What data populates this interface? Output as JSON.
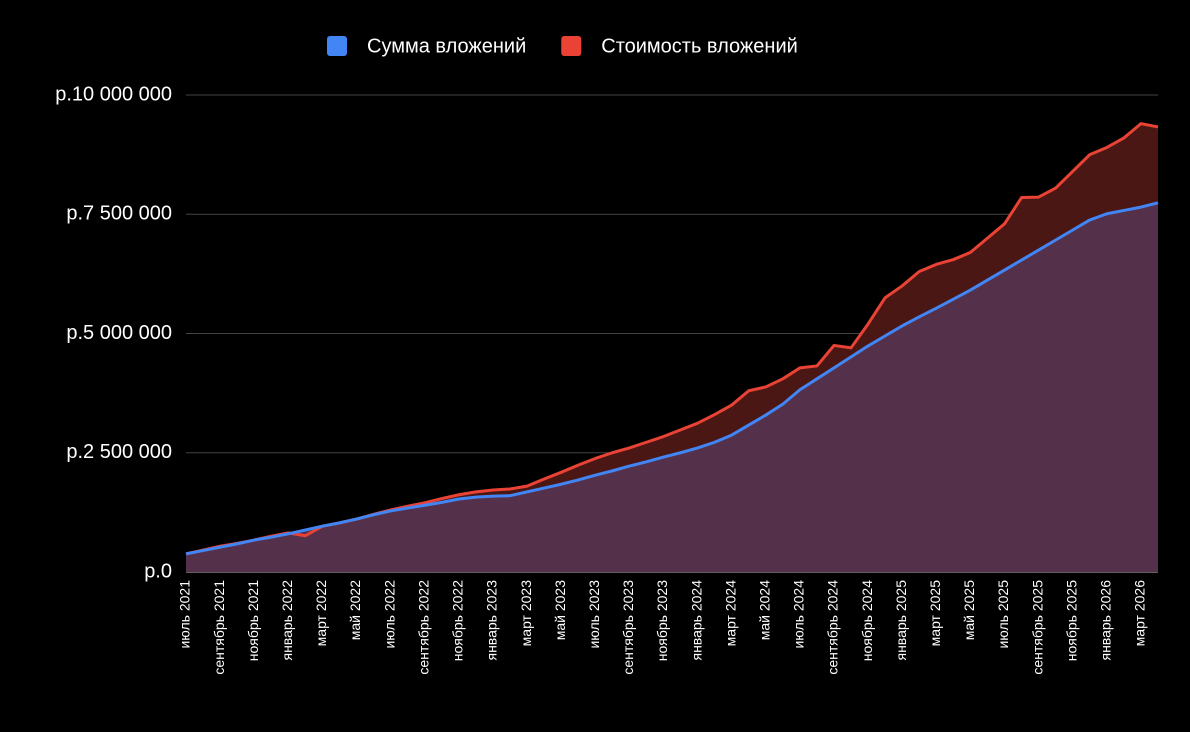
{
  "chart_data": {
    "type": "area",
    "categories": [
      "июль 2021",
      null,
      "сентябрь 2021",
      null,
      "ноябрь 2021",
      null,
      "январь 2022",
      null,
      "март 2022",
      null,
      "май 2022",
      null,
      "июль 2022",
      null,
      "сентябрь 2022",
      null,
      "ноябрь 2022",
      null,
      "январь 2023",
      null,
      "март 2023",
      null,
      "май 2023",
      null,
      "июль 2023",
      null,
      "сентябрь 2023",
      null,
      "ноябрь 2023",
      null,
      "январь 2024",
      null,
      "март 2024",
      null,
      "май 2024",
      null,
      "июль 2024",
      null,
      "сентябрь 2024",
      null,
      "ноябрь 2024",
      null,
      "январь 2025",
      null,
      "март 2025",
      null,
      "май 2025",
      null,
      "июль 2025",
      null,
      "сентябрь 2025",
      null,
      "ноябрь 2025",
      null,
      "январь 2026",
      null,
      "март 2026",
      null
    ],
    "series": [
      {
        "name": "Сумма вложений",
        "color": "#4285f4",
        "fill": "#54304a",
        "values": [
          380000,
          450000,
          520000,
          590000,
          670000,
          730000,
          800000,
          880000,
          960000,
          1030000,
          1110000,
          1200000,
          1280000,
          1340000,
          1400000,
          1460000,
          1530000,
          1570000,
          1590000,
          1600000,
          1680000,
          1760000,
          1840000,
          1930000,
          2030000,
          2120000,
          2220000,
          2310000,
          2410000,
          2500000,
          2600000,
          2720000,
          2870000,
          3080000,
          3290000,
          3520000,
          3820000,
          4050000,
          4280000,
          4510000,
          4740000,
          4950000,
          5160000,
          5350000,
          5530000,
          5720000,
          5910000,
          6120000,
          6330000,
          6540000,
          6750000,
          6960000,
          7170000,
          7380000,
          7510000,
          7580000,
          7650000,
          7740000
        ]
      },
      {
        "name": "Стоимость вложений",
        "color": "#ea4335",
        "fill": "#4a1715",
        "values": [
          380000,
          460000,
          540000,
          600000,
          670000,
          750000,
          820000,
          760000,
          960000,
          1030000,
          1110000,
          1210000,
          1300000,
          1380000,
          1450000,
          1540000,
          1620000,
          1680000,
          1720000,
          1740000,
          1800000,
          1950000,
          2090000,
          2240000,
          2380000,
          2500000,
          2600000,
          2720000,
          2840000,
          2980000,
          3120000,
          3300000,
          3500000,
          3800000,
          3880000,
          4050000,
          4280000,
          4320000,
          4750000,
          4700000,
          5200000,
          5750000,
          6000000,
          6300000,
          6450000,
          6550000,
          6700000,
          7000000,
          7300000,
          7850000,
          7860000,
          8050000,
          8400000,
          8750000,
          8900000,
          9100000,
          9400000,
          9330000
        ]
      }
    ],
    "ylim": [
      0,
      10000000
    ],
    "yticks": [
      {
        "value": 0,
        "label": "р.0"
      },
      {
        "value": 2500000,
        "label": "р.2 500 000"
      },
      {
        "value": 5000000,
        "label": "р.5 000 000"
      },
      {
        "value": 7500000,
        "label": "р.7 500 000"
      },
      {
        "value": 10000000,
        "label": "р.10 000 000"
      }
    ],
    "grid": true,
    "legend": "top"
  }
}
